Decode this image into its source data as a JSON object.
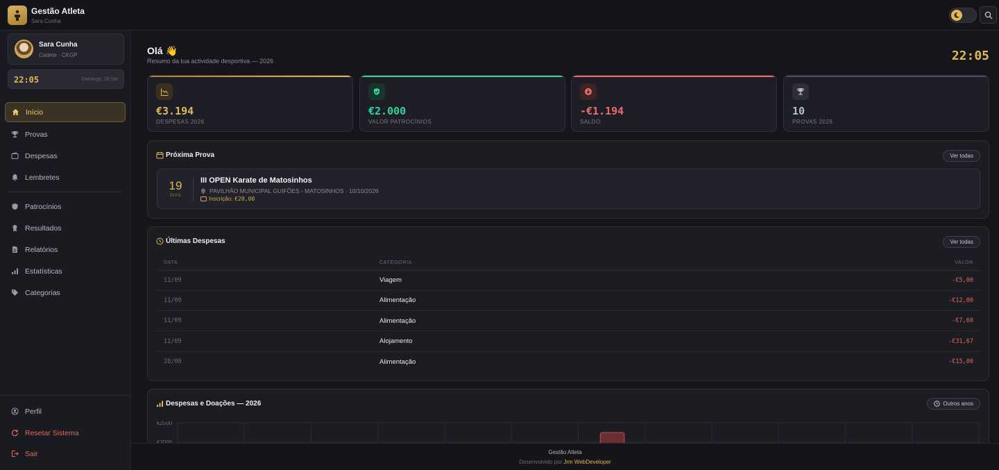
{
  "app": {
    "title": "Gestão Atleta",
    "user": "Sara Cunha"
  },
  "sidebar": {
    "profile_name": "Sara Cunha",
    "profile_sub": "Cadete · CKGP",
    "clock_time": "22:05",
    "clock_date": "Domingo, 20 Set",
    "items": [
      {
        "label": "Início",
        "icon": "home-icon",
        "active": true
      },
      {
        "label": "Provas",
        "icon": "trophy-icon"
      },
      {
        "label": "Despesas",
        "icon": "wallet-icon"
      },
      {
        "label": "Lembretes",
        "icon": "bell-icon"
      },
      {
        "label": "Patrocínios",
        "icon": "shield-icon"
      },
      {
        "label": "Resultados",
        "icon": "medal-icon"
      },
      {
        "label": "Relatórios",
        "icon": "report-icon"
      },
      {
        "label": "Estatísticas",
        "icon": "bar-chart-icon"
      },
      {
        "label": "Categorias",
        "icon": "tag-icon"
      }
    ],
    "bottom": {
      "profile": "Perfil",
      "reset": "Resetar Sistema",
      "logout": "Sair"
    }
  },
  "header": {
    "greeting": "Olá 👋",
    "subtitle": "Resumo da tua actividade desportiva — 2026",
    "clock": "22:05"
  },
  "stats": [
    {
      "value": "€3.194",
      "label": "DESPESAS 2026",
      "color": "#e0b85a",
      "icon": "trend-down-icon"
    },
    {
      "value": "€2.000",
      "label": "VALOR PATROCÍNIOS",
      "color": "#34d399",
      "icon": "shield-check-icon"
    },
    {
      "value": "-€1.194",
      "label": "SALDO",
      "color": "#ef6b6b",
      "icon": "arrow-down-circle-icon"
    },
    {
      "value": "10",
      "label": "PROVAS 2026",
      "color": "#b8bccb",
      "icon": "trophy-icon"
    }
  ],
  "next_event": {
    "title": "Próxima Prova",
    "button": "Ver todas",
    "days": "19",
    "days_label": "DIAS",
    "name": "III OPEN Karate de Matosinhos",
    "location": "PAVILHÃO MUNICIPAL GUIFÕES - MATOSINHOS · 10/10/2026",
    "fee_label": "Inscrição:",
    "fee": "€20,00"
  },
  "expenses": {
    "title": "Últimas Despesas",
    "button": "Ver todas",
    "columns": [
      "DATA",
      "CATEGORIA",
      "VALOR"
    ],
    "rows": [
      {
        "date": "11/09",
        "category": "Viagem",
        "value": "-€5,00"
      },
      {
        "date": "11/09",
        "category": "Alimentação",
        "value": "-€12,00"
      },
      {
        "date": "11/09",
        "category": "Alimentação",
        "value": "-€7,60"
      },
      {
        "date": "11/09",
        "category": "Alojamento",
        "value": "-€31,67"
      },
      {
        "date": "28/08",
        "category": "Alimentação",
        "value": "-€15,00"
      }
    ]
  },
  "chart_panel": {
    "title": "Despesas e Doações — 2026",
    "button": "Outros anos"
  },
  "chart_data": {
    "type": "bar",
    "categories": [
      "",
      "",
      "",
      "",
      "",
      "",
      "",
      "",
      "",
      "",
      "",
      ""
    ],
    "series": [
      {
        "values": [
          0,
          0,
          0,
          0,
          0,
          0,
          2000,
          0,
          0,
          0,
          0,
          0
        ],
        "color": "#c0504d"
      }
    ],
    "ytick_labels": [
      "€2500",
      "€2000"
    ],
    "ylim": [
      0,
      2500
    ],
    "grid": true
  },
  "footer": {
    "title": "Gestão Atleta",
    "credit_prefix": "Desenvolvido por",
    "credit_name": "Jrm WebDeveloper"
  }
}
